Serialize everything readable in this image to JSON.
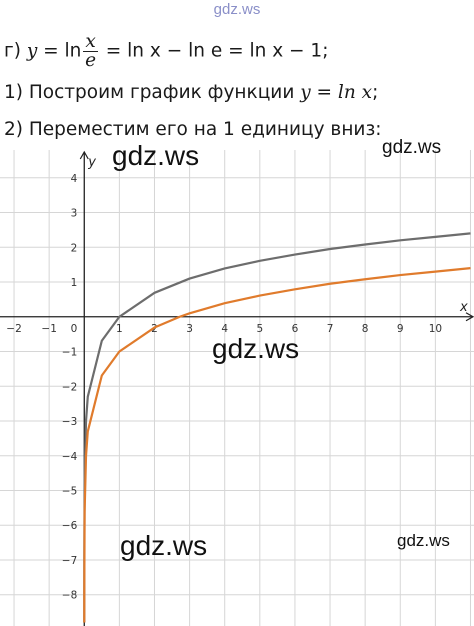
{
  "watermarks": {
    "top": "gdz.ws",
    "big1": "gdz.ws",
    "big2": "gdz.ws",
    "big3": "gdz.ws",
    "small1": "gdz.ws",
    "small2": "gdz.ws"
  },
  "text": {
    "line1": {
      "prefix": "г) ",
      "y": "y",
      "eq1": " = ln",
      "num": "x",
      "den": "e",
      "rest": " = ln x − ln e = ln x − 1;"
    },
    "line2": {
      "before": "1) Построим график функции ",
      "formula": "y = ln x",
      "after": ";"
    },
    "line3": "2) Переместим его на 1 единицу вниз:"
  },
  "chart_data": {
    "type": "line",
    "xlabel": "x",
    "ylabel": "y",
    "xlim": [
      -2.4,
      11.1
    ],
    "ylim": [
      -8.9,
      4.8
    ],
    "x_ticks": [
      -2,
      -1,
      1,
      2,
      3,
      4,
      5,
      6,
      7,
      8,
      9,
      10
    ],
    "y_ticks": [
      4,
      3,
      2,
      1,
      -1,
      -2,
      -3,
      -4,
      -5,
      -6,
      -7,
      -8
    ],
    "origin_label": "0",
    "grid": true,
    "series": [
      {
        "formula": "ln(x)",
        "color": "#6d6d6d",
        "x": [
          0.00015,
          0.001,
          0.01,
          0.05,
          0.1,
          0.5,
          1,
          2,
          3,
          4,
          5,
          6,
          7,
          8,
          9,
          10,
          11
        ],
        "values": [
          -8.8,
          -6.91,
          -4.61,
          -3.0,
          -2.3,
          -0.69,
          0,
          0.69,
          1.1,
          1.39,
          1.61,
          1.79,
          1.95,
          2.08,
          2.2,
          2.3,
          2.4
        ]
      },
      {
        "formula": "ln(x) - 1",
        "color": "#e07b2c",
        "x": [
          0.0004,
          0.001,
          0.01,
          0.05,
          0.1,
          0.5,
          1,
          2,
          2.72,
          3,
          4,
          5,
          6,
          7,
          8,
          9,
          10,
          11
        ],
        "values": [
          -8.8,
          -7.91,
          -5.61,
          -4.0,
          -3.3,
          -1.69,
          -1,
          -0.31,
          0,
          0.1,
          0.39,
          0.61,
          0.79,
          0.95,
          1.08,
          1.2,
          1.3,
          1.4
        ]
      }
    ]
  }
}
